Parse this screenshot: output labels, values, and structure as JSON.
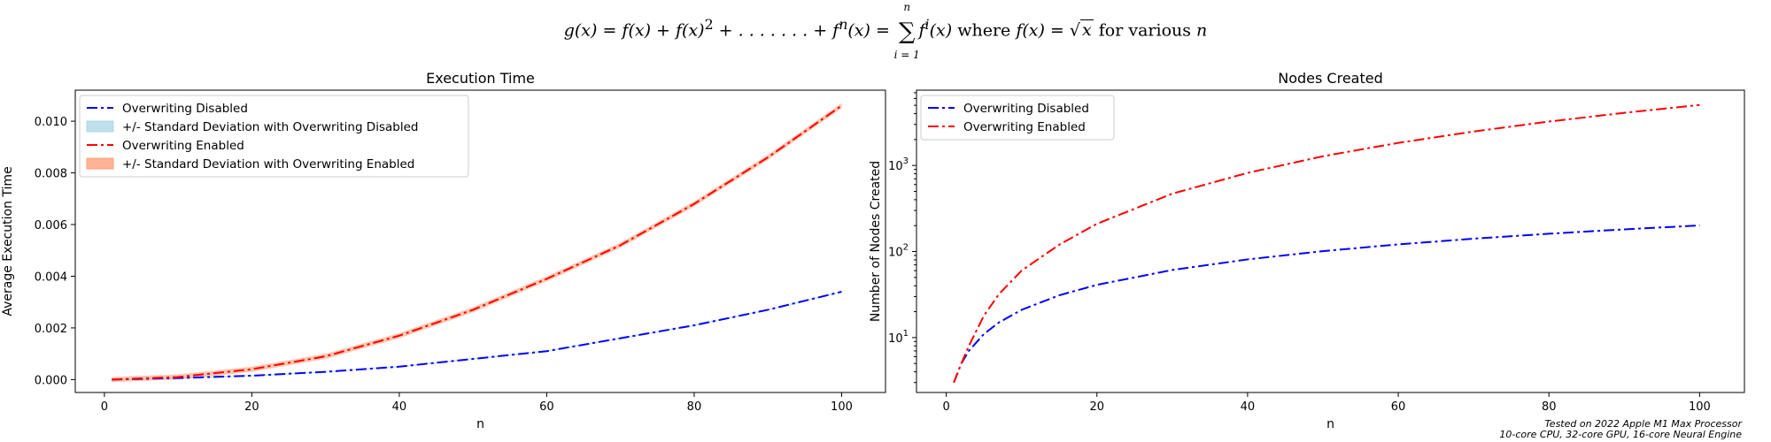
{
  "figure": {
    "suptitle_prefix": "g(x) = f(x) + f(x)",
    "suptitle_sq": "2",
    "suptitle_dots": " + . . . . . . . + f",
    "suptitle_n": "n",
    "suptitle_mid": "(x) = ",
    "sum_upper": "n",
    "sum_lower": "i = 1",
    "suptitle_fi": "f",
    "suptitle_i": "i",
    "suptitle_after": "(x)",
    "suptitle_where": " where ",
    "suptitle_fx": "f(x) = ",
    "suptitle_sqrt_arg": "x",
    "suptitle_for": " for various ",
    "suptitle_nvar": "n",
    "footnote_line1": "Tested on 2022 Apple M1 Max Processor",
    "footnote_line2": "10-core CPU, 32-core GPU, 16-core Neural Engine"
  },
  "colors": {
    "disabled": "#0000ff",
    "enabled": "#ff0000",
    "disabled_band": "#add8e6",
    "enabled_band": "#ffa07a"
  },
  "chart_data": [
    {
      "type": "line",
      "title": "Execution Time",
      "xlabel": "n",
      "ylabel": "Average Execution Time",
      "xlim": [
        -3.95,
        105.95
      ],
      "ylim": [
        -0.0005,
        0.0112
      ],
      "x_ticks": [
        0,
        20,
        40,
        60,
        80,
        100
      ],
      "x_tick_labels": [
        "0",
        "20",
        "40",
        "60",
        "80",
        "100"
      ],
      "y_ticks": [
        0.0,
        0.002,
        0.004,
        0.006,
        0.008,
        0.01
      ],
      "y_tick_labels": [
        "0.000",
        "0.002",
        "0.004",
        "0.006",
        "0.008",
        "0.010"
      ],
      "legend_position": "upper left",
      "legend": [
        "Overwriting Disabled",
        "+/- Standard Deviation with Overwriting Disabled",
        "Overwriting Enabled",
        "+/- Standard Deviation with Overwriting Enabled"
      ],
      "series": [
        {
          "name": "Overwriting Disabled",
          "x": [
            1,
            10,
            20,
            30,
            40,
            50,
            60,
            70,
            80,
            90,
            100
          ],
          "y": [
            0.0,
            6e-05,
            0.00015,
            0.0003,
            0.0005,
            0.0008,
            0.0011,
            0.0016,
            0.0021,
            0.0027,
            0.0034
          ]
        },
        {
          "name": "Overwriting Enabled",
          "x": [
            1,
            10,
            20,
            30,
            40,
            50,
            60,
            70,
            80,
            90,
            100
          ],
          "y": [
            0.0,
            0.0001,
            0.0004,
            0.0009,
            0.0017,
            0.0027,
            0.0039,
            0.0052,
            0.0068,
            0.0086,
            0.0106
          ]
        }
      ],
      "std_bands": [
        {
          "name": "+/- Standard Deviation with Overwriting Disabled",
          "series": "Overwriting Disabled",
          "std": 3e-05
        },
        {
          "name": "+/- Standard Deviation with Overwriting Enabled",
          "series": "Overwriting Enabled",
          "std": 0.0001
        }
      ]
    },
    {
      "type": "line",
      "title": "Nodes Created",
      "xlabel": "n",
      "ylabel": "Number of Nodes Created",
      "y_scale": "log",
      "xlim": [
        -3.95,
        105.95
      ],
      "ylim": [
        2.3,
        7500
      ],
      "x_ticks": [
        0,
        20,
        40,
        60,
        80,
        100
      ],
      "x_tick_labels": [
        "0",
        "20",
        "40",
        "60",
        "80",
        "100"
      ],
      "y_ticks": [
        10,
        100,
        1000
      ],
      "y_tick_base": "10",
      "y_tick_exponents": [
        "1",
        "2",
        "3"
      ],
      "legend_position": "upper left",
      "legend": [
        "Overwriting Disabled",
        "Overwriting Enabled"
      ],
      "series": [
        {
          "name": "Overwriting Disabled",
          "x": [
            1,
            2,
            3,
            5,
            7,
            10,
            15,
            20,
            30,
            40,
            50,
            60,
            70,
            80,
            90,
            100
          ],
          "y": [
            3,
            5,
            7,
            11,
            15,
            21,
            31,
            41,
            61,
            81,
            101,
            121,
            141,
            161,
            181,
            201
          ]
        },
        {
          "name": "Overwriting Enabled",
          "x": [
            1,
            2,
            3,
            5,
            7,
            10,
            15,
            20,
            30,
            40,
            50,
            60,
            70,
            80,
            90,
            100
          ],
          "y": [
            3,
            5,
            8,
            18,
            32,
            60,
            120,
            210,
            470,
            820,
            1280,
            1830,
            2480,
            3240,
            4090,
            5050
          ]
        }
      ]
    }
  ]
}
